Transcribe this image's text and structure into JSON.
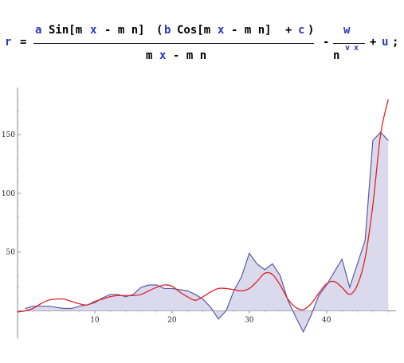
{
  "formula": {
    "lhs_var": "r",
    "eq": "=",
    "num_a": "a",
    "num_sin": "Sin[m",
    "num_x1": "x",
    "num_mid": "- m n]",
    "num_paren_open": "(",
    "num_b": "b",
    "num_cos": "Cos[m",
    "num_x2": "x",
    "num_mid2": "- m n]",
    "num_plus": "+",
    "num_c": "c",
    "num_paren_close": ")",
    "den_m": "m",
    "den_x": "x",
    "den_rest": "- m n",
    "minus": "-",
    "w": "w",
    "n_base": "n",
    "exp_v": "v",
    "exp_x": "x",
    "plus": "+",
    "u": "u",
    "semicolon": ";"
  },
  "chart_data": {
    "type": "area",
    "xlim": [
      0,
      49
    ],
    "ylim": [
      -20,
      190
    ],
    "xticks": [
      10,
      20,
      30,
      40
    ],
    "yticks": [
      50,
      100,
      150
    ],
    "colors": {
      "data_line": "#5a5aa6",
      "data_fill": "#d6d6ea",
      "fit_line": "#e0202a"
    },
    "series": [
      {
        "x": [
          1,
          2,
          3,
          4,
          5,
          6,
          7,
          8,
          9,
          10,
          11,
          12,
          13,
          14,
          15,
          16,
          17,
          18,
          19,
          20,
          21,
          22,
          23,
          24,
          25,
          26,
          27,
          28,
          29,
          30,
          31,
          32,
          33,
          34,
          35,
          36,
          37,
          38,
          39,
          40,
          41,
          42,
          43,
          44,
          45,
          46,
          47,
          48
        ],
        "values": [
          2,
          4,
          4,
          4,
          3,
          2,
          2,
          4,
          5,
          7,
          11,
          14,
          14,
          12,
          14,
          20,
          22,
          22,
          19,
          19,
          18,
          17,
          14,
          10,
          3,
          -7,
          0,
          17,
          29,
          49,
          40,
          35,
          40,
          30,
          9,
          -5,
          -18,
          -4,
          13,
          22,
          33,
          44,
          20,
          40,
          60,
          145,
          152,
          145
        ]
      },
      {
        "x": [
          0,
          1,
          2,
          3,
          4,
          5,
          6,
          7,
          8,
          9,
          10,
          11,
          12,
          13,
          14,
          15,
          16,
          17,
          18,
          19,
          20,
          21,
          22,
          23,
          24,
          25,
          26,
          27,
          28,
          29,
          30,
          31,
          32,
          33,
          34,
          35,
          36,
          37,
          38,
          39,
          40,
          41,
          42,
          43,
          44,
          45,
          46,
          47,
          48
        ],
        "values": [
          -1,
          0,
          2,
          6,
          9,
          10,
          10,
          8,
          6,
          5,
          8,
          10,
          12,
          13,
          13,
          13,
          14,
          17,
          20,
          22,
          21,
          16,
          12,
          9,
          12,
          16,
          19,
          19,
          18,
          17,
          19,
          25,
          32,
          31,
          22,
          10,
          3,
          1,
          6,
          15,
          23,
          25,
          20,
          14,
          22,
          45,
          90,
          150,
          180
        ]
      }
    ]
  }
}
